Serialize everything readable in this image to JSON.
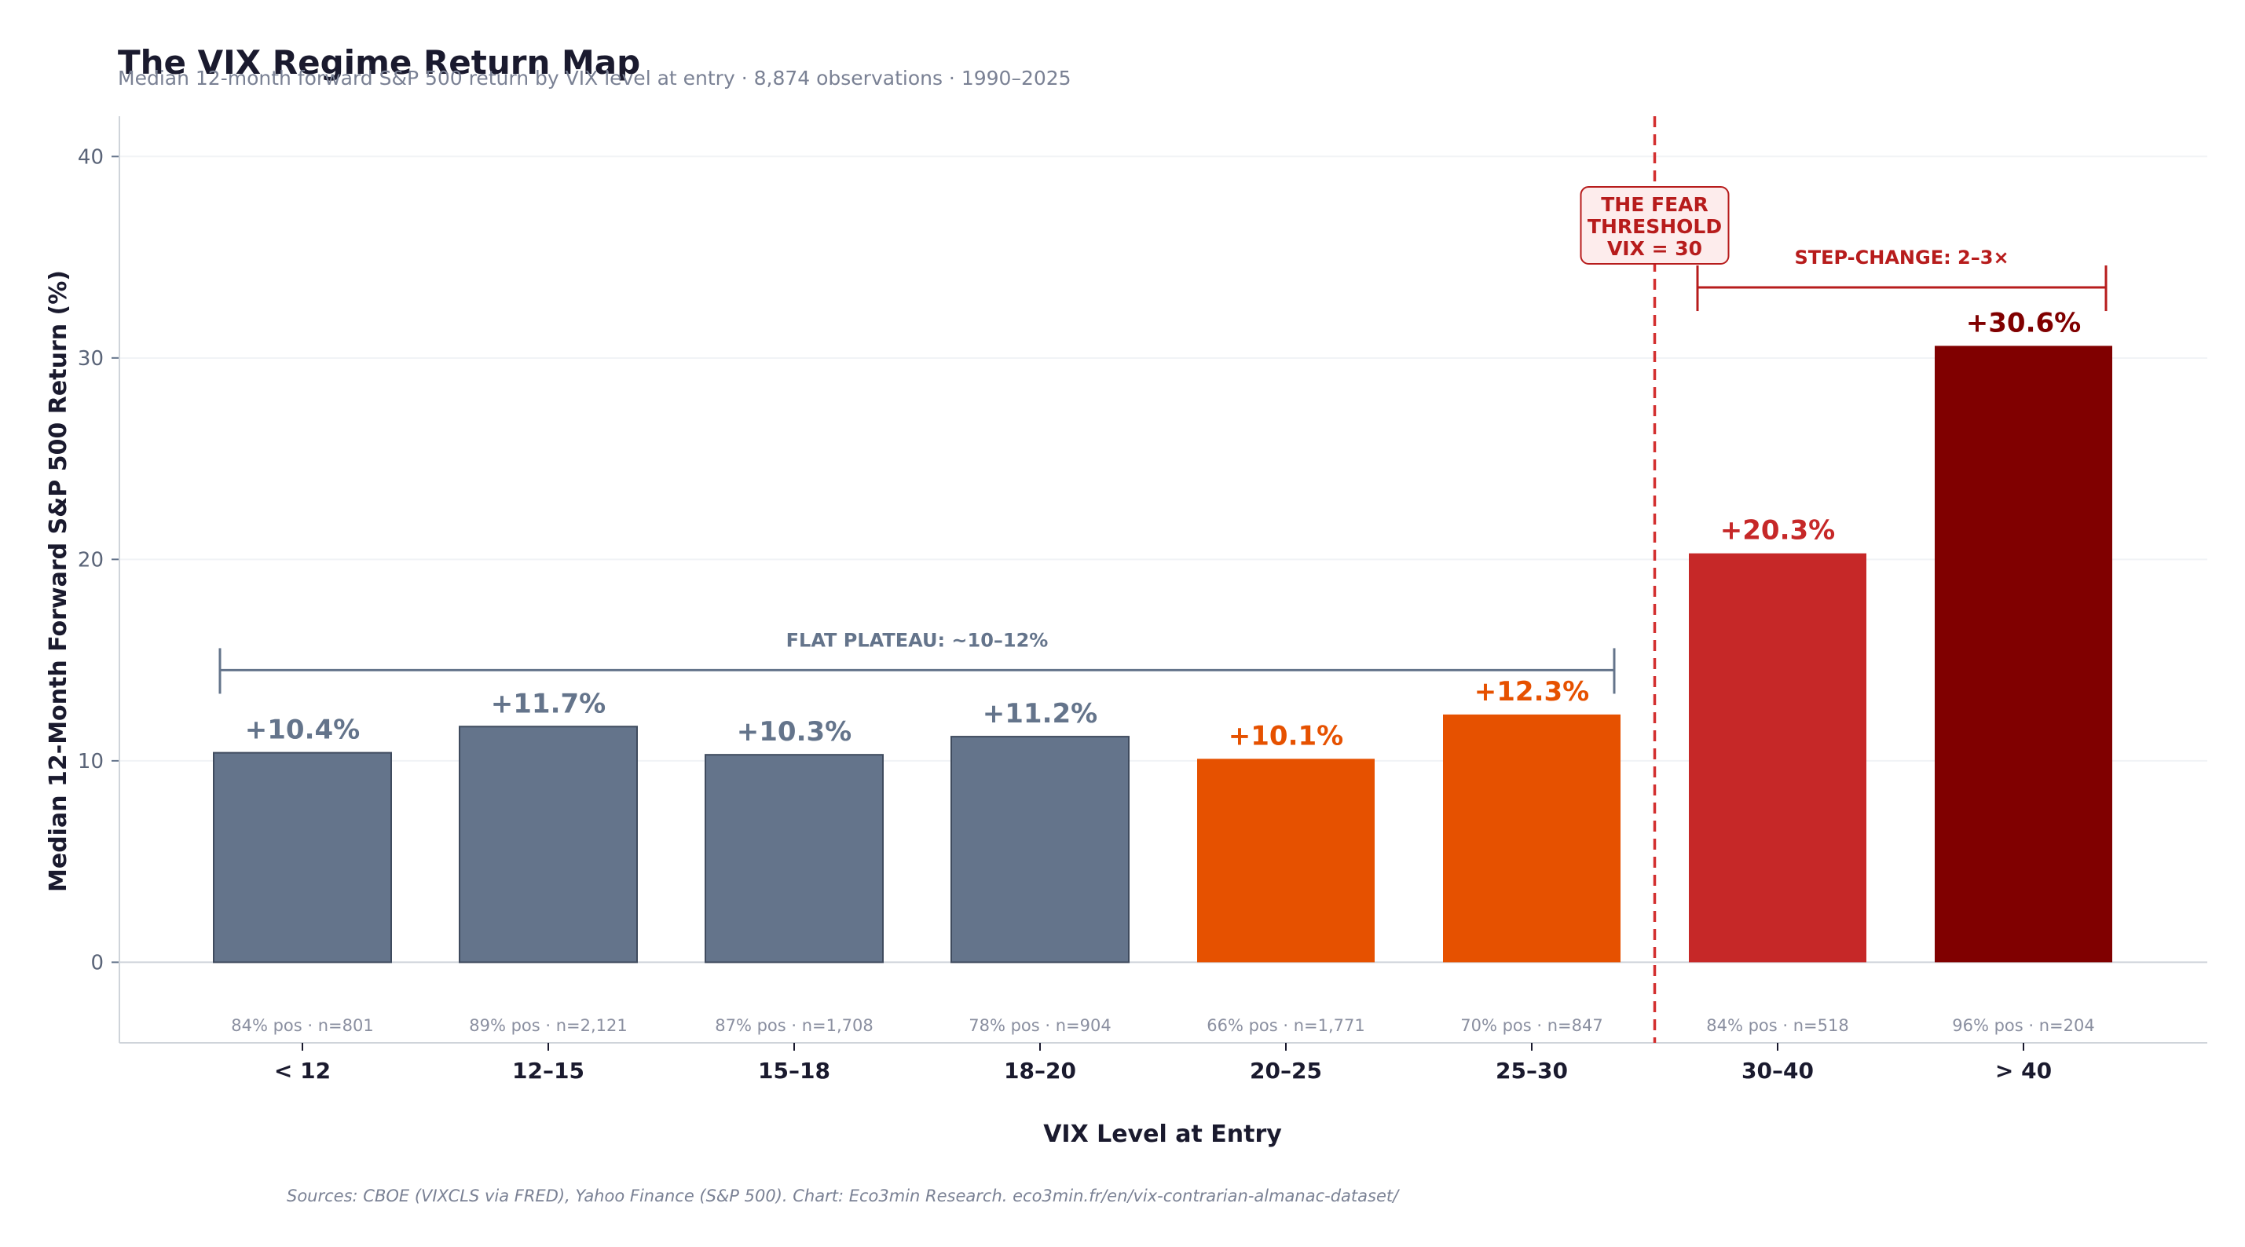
{
  "chart_data": {
    "type": "bar",
    "title": "The VIX Regime Return Map",
    "subtitle": "Median 12-month forward S&P 500 return by VIX level at entry · 8,874 observations · 1990–2025",
    "xlabel": "VIX Level at Entry",
    "ylabel": "Median 12-Month Forward S&P 500 Return (%)",
    "ylim": [
      -4,
      42
    ],
    "yticks": [
      0,
      10,
      20,
      30,
      40
    ],
    "grid": true,
    "categories": [
      "< 12",
      "12–15",
      "15–18",
      "18–20",
      "20–25",
      "25–30",
      "30–40",
      "> 40"
    ],
    "values": [
      10.4,
      11.7,
      10.3,
      11.2,
      10.1,
      12.3,
      20.3,
      30.6
    ],
    "value_labels": [
      "+10.4%",
      "+11.7%",
      "+10.3%",
      "+11.2%",
      "+10.1%",
      "+12.3%",
      "+20.3%",
      "+30.6%"
    ],
    "sample_labels": [
      "84% pos · n=801",
      "89% pos · n=2,121",
      "87% pos · n=1,708",
      "78% pos · n=904",
      "66% pos · n=1,771",
      "70% pos · n=847",
      "84% pos · n=518",
      "96% pos · n=204"
    ],
    "bar_colors": [
      "#64748b",
      "#64748b",
      "#64748b",
      "#64748b",
      "#e65100",
      "#e65100",
      "#c62828",
      "#800000"
    ],
    "label_colors": [
      "#64748b",
      "#64748b",
      "#64748b",
      "#64748b",
      "#e65100",
      "#e65100",
      "#c62828",
      "#800000"
    ],
    "threshold": {
      "position_between": [
        "25–30",
        "30–40"
      ],
      "label_lines": [
        "THE FEAR",
        "THRESHOLD",
        "VIX = 30"
      ],
      "color": "#d32f2f"
    },
    "annotations": [
      {
        "text": "FLAT PLATEAU: ~10–12%",
        "from": "< 12",
        "to": "25–30",
        "y": 14.5,
        "color": "#64748b"
      },
      {
        "text": "STEP-CHANGE: 2–3×",
        "from": "30–40",
        "to": "> 40",
        "y": 33.5,
        "color": "#b71c1c"
      }
    ],
    "source": "Sources: CBOE (VIXCLS via FRED), Yahoo Finance (S&P 500). Chart: Eco3min Research.  eco3min.fr/en/vix-contrarian-almanac-dataset/"
  }
}
